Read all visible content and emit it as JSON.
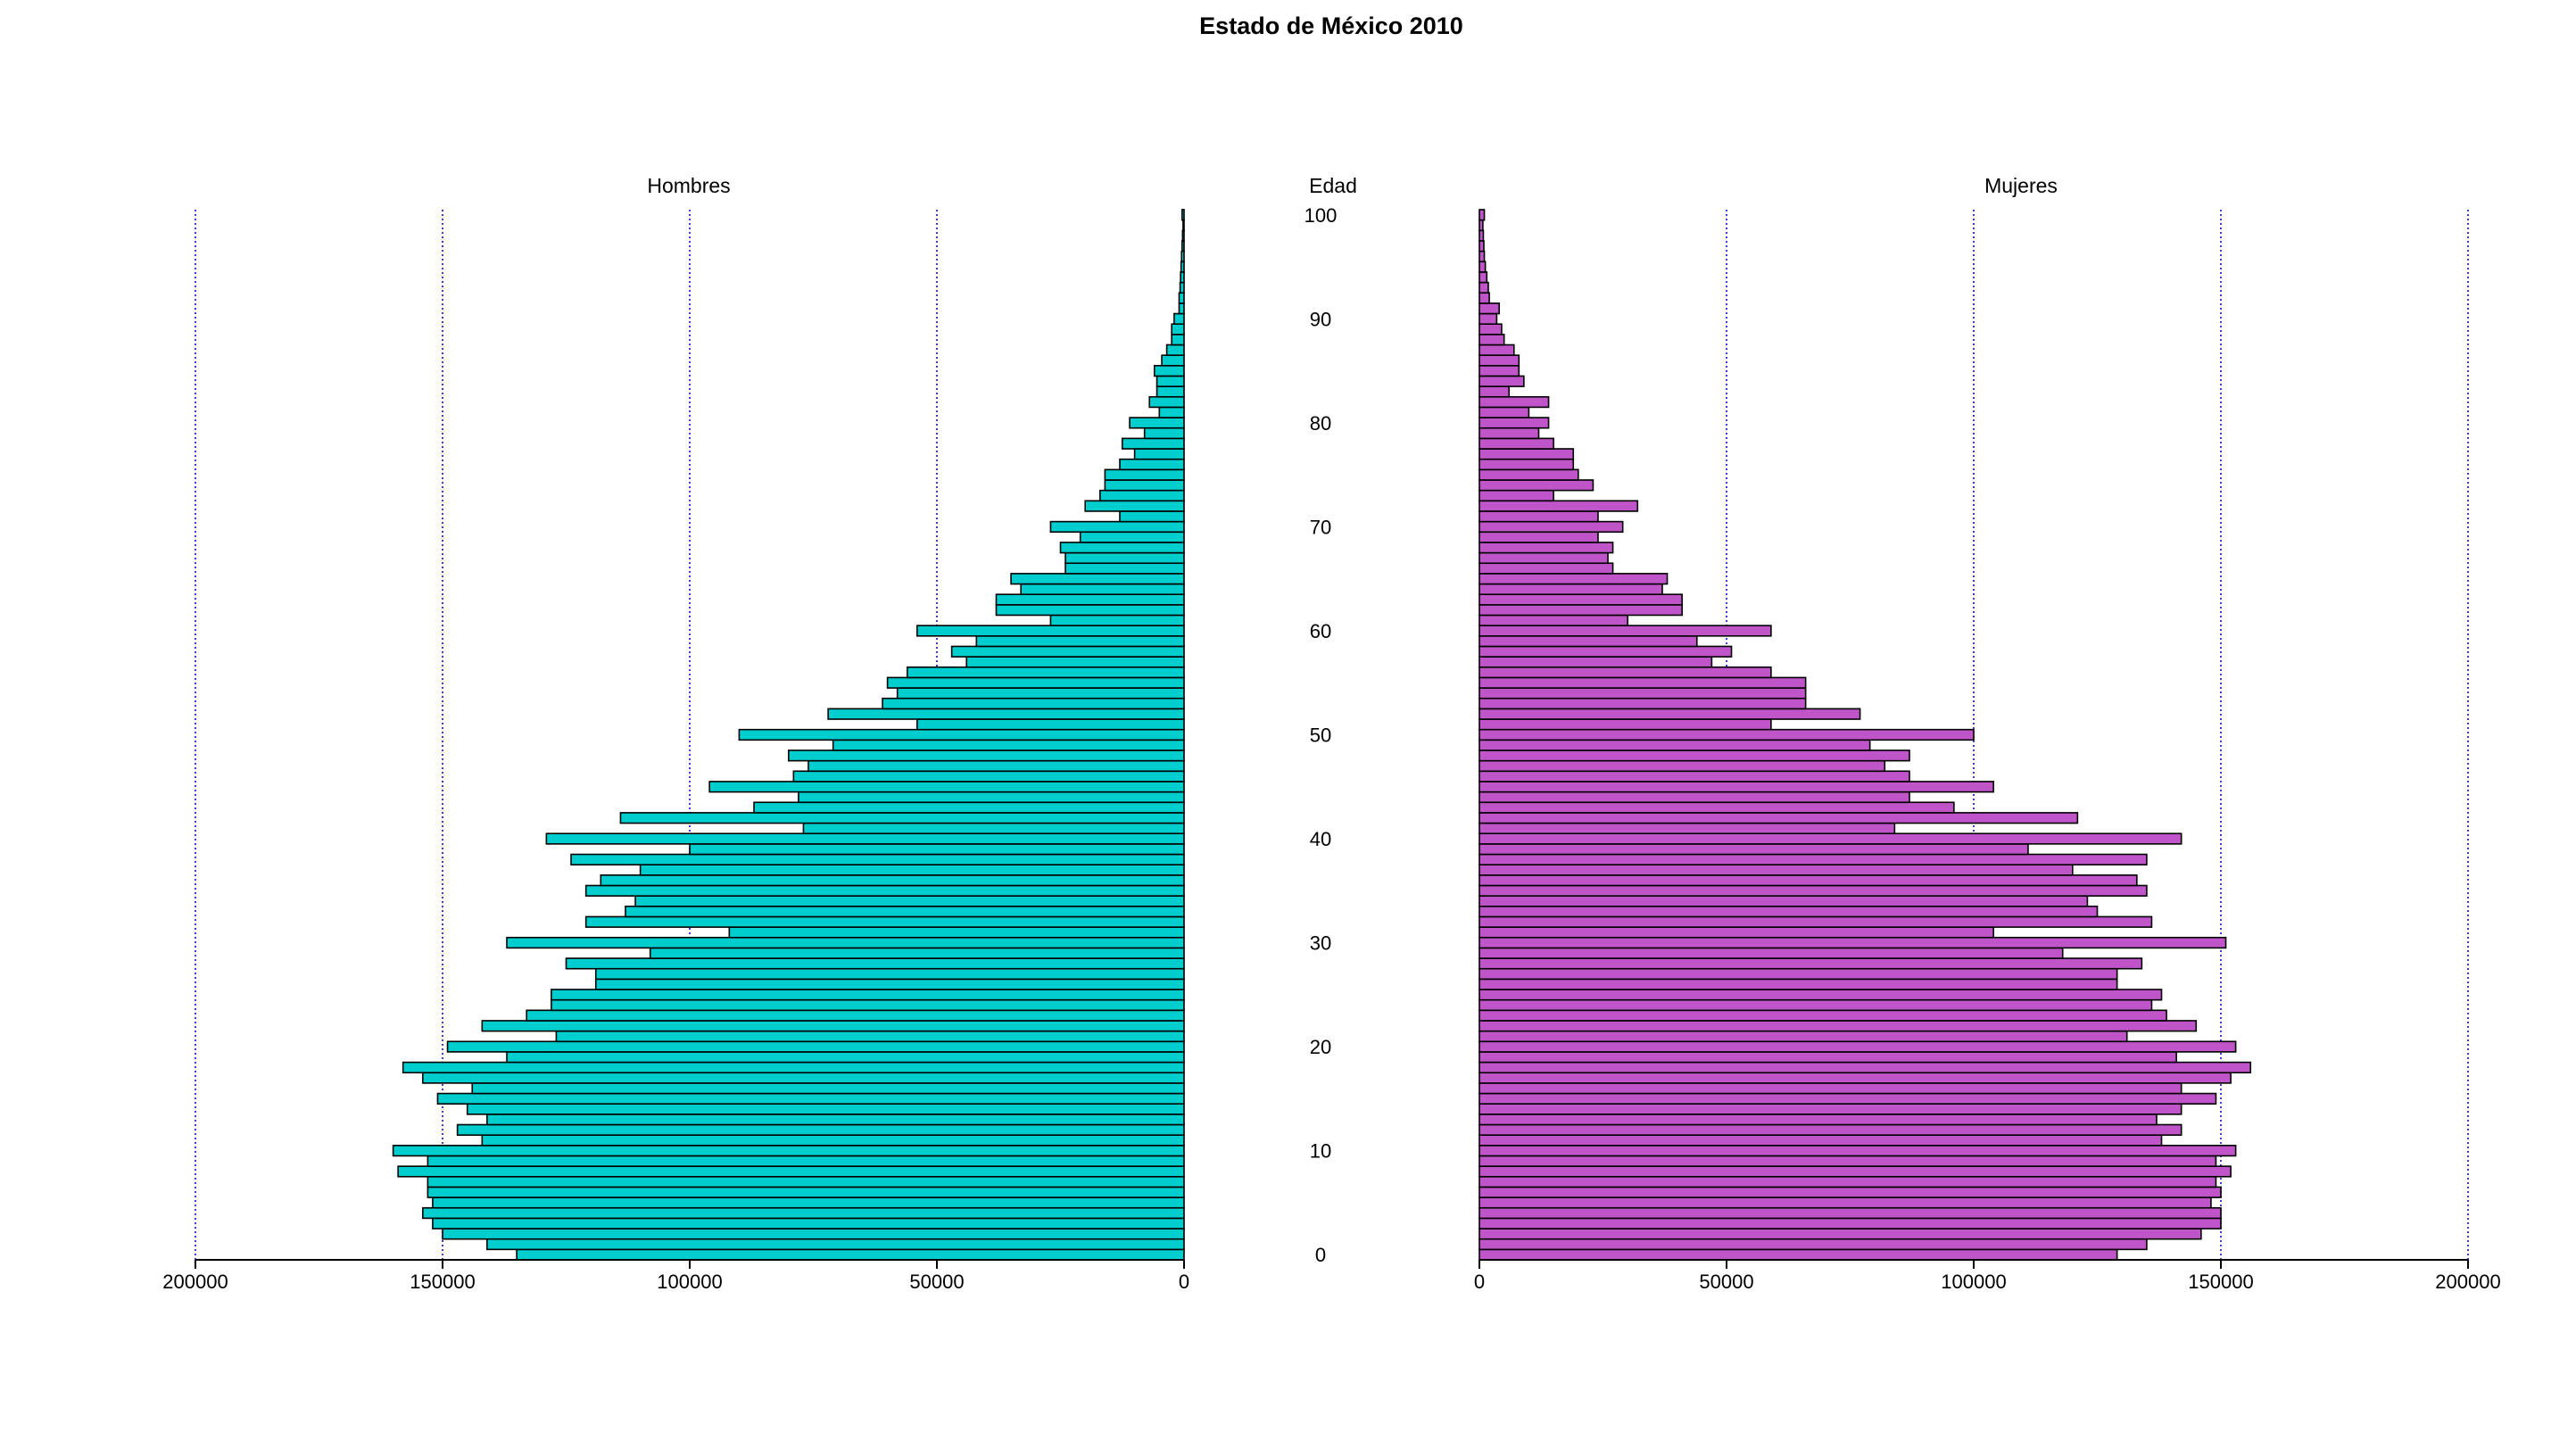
{
  "chart_data": {
    "type": "bar",
    "subtype": "population-pyramid",
    "title": "Estado de México 2010",
    "center_label": "Edad",
    "left_panel_label": "Hombres",
    "right_panel_label": "Mujeres",
    "ages": [
      0,
      1,
      2,
      3,
      4,
      5,
      6,
      7,
      8,
      9,
      10,
      11,
      12,
      13,
      14,
      15,
      16,
      17,
      18,
      19,
      20,
      21,
      22,
      23,
      24,
      25,
      26,
      27,
      28,
      29,
      30,
      31,
      32,
      33,
      34,
      35,
      36,
      37,
      38,
      39,
      40,
      41,
      42,
      43,
      44,
      45,
      46,
      47,
      48,
      49,
      50,
      51,
      52,
      53,
      54,
      55,
      56,
      57,
      58,
      59,
      60,
      61,
      62,
      63,
      64,
      65,
      66,
      67,
      68,
      69,
      70,
      71,
      72,
      73,
      74,
      75,
      76,
      77,
      78,
      79,
      80,
      81,
      82,
      83,
      84,
      85,
      86,
      87,
      88,
      89,
      90,
      91,
      92,
      93,
      94,
      95,
      96,
      97,
      98,
      99,
      100
    ],
    "age_ticks": [
      0,
      10,
      20,
      30,
      40,
      50,
      60,
      70,
      80,
      90,
      100
    ],
    "series": [
      {
        "name": "Hombres",
        "color": "#00cdcd",
        "values": [
          135000,
          141000,
          150000,
          152000,
          154000,
          152000,
          153000,
          153000,
          159000,
          153000,
          160000,
          142000,
          147000,
          141000,
          145000,
          151000,
          144000,
          154000,
          158000,
          137000,
          149000,
          127000,
          142000,
          133000,
          128000,
          128000,
          119000,
          119000,
          125000,
          108000,
          137000,
          92000,
          121000,
          113000,
          111000,
          121000,
          118000,
          110000,
          124000,
          100000,
          129000,
          77000,
          114000,
          87000,
          78000,
          96000,
          79000,
          76000,
          80000,
          71000,
          90000,
          54000,
          72000,
          61000,
          58000,
          60000,
          56000,
          44000,
          47000,
          42000,
          54000,
          27000,
          38000,
          38000,
          33000,
          35000,
          24000,
          24000,
          25000,
          21000,
          27000,
          13000,
          20000,
          17000,
          16000,
          16000,
          13000,
          10000,
          12500,
          8000,
          11000,
          5000,
          7000,
          5500,
          5500,
          6000,
          4500,
          3500,
          2500,
          2500,
          2000,
          1000,
          1000,
          800,
          700,
          600,
          500,
          400,
          300,
          200,
          400
        ]
      },
      {
        "name": "Mujeres",
        "color": "#bf55c8",
        "values": [
          129000,
          135000,
          146000,
          150000,
          150000,
          148000,
          150000,
          149000,
          152000,
          149000,
          153000,
          138000,
          142000,
          137000,
          142000,
          149000,
          142000,
          152000,
          156000,
          141000,
          153000,
          131000,
          145000,
          139000,
          136000,
          138000,
          129000,
          129000,
          134000,
          118000,
          151000,
          104000,
          136000,
          125000,
          123000,
          135000,
          133000,
          120000,
          135000,
          111000,
          142000,
          84000,
          121000,
          96000,
          87000,
          104000,
          87000,
          82000,
          87000,
          79000,
          100000,
          59000,
          77000,
          66000,
          66000,
          66000,
          59000,
          47000,
          51000,
          44000,
          59000,
          30000,
          41000,
          41000,
          37000,
          38000,
          27000,
          26000,
          27000,
          24000,
          29000,
          24000,
          32000,
          15000,
          23000,
          20000,
          19000,
          19000,
          15000,
          12000,
          14000,
          10000,
          14000,
          6000,
          9000,
          8000,
          8000,
          7000,
          5000,
          4500,
          3500,
          4000,
          2000,
          1800,
          1500,
          1200,
          1000,
          900,
          800,
          700,
          1000
        ]
      }
    ],
    "xlim": [
      0,
      200000
    ],
    "x_ticks": [
      0,
      50000,
      100000,
      150000,
      200000
    ],
    "x_tick_labels": [
      "0",
      "50000",
      "100000",
      "150000",
      "200000"
    ],
    "gridlines": "vertical dotted blue at 50000, 100000, 150000, 200000",
    "legend": "none"
  }
}
